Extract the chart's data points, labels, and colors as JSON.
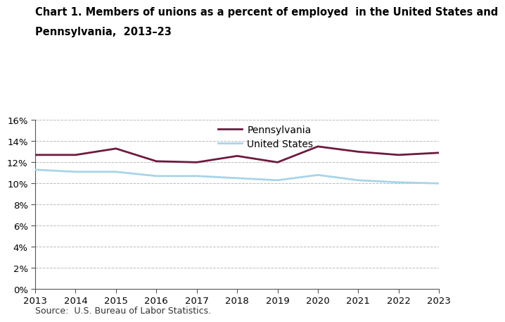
{
  "title_line1": "Chart 1. Members of unions as a percent of employed  in the United States and",
  "title_line2": "Pennsylvania,  2013–23",
  "years": [
    2013,
    2014,
    2015,
    2016,
    2017,
    2018,
    2019,
    2020,
    2021,
    2022,
    2023
  ],
  "pennsylvania": [
    12.7,
    12.7,
    13.3,
    12.1,
    12.0,
    12.6,
    12.0,
    13.5,
    13.0,
    12.7,
    12.9
  ],
  "united_states": [
    11.3,
    11.1,
    11.1,
    10.7,
    10.7,
    10.5,
    10.3,
    10.8,
    10.3,
    10.1,
    10.0
  ],
  "pa_color": "#6d1a3e",
  "us_color": "#a8d4e8",
  "pa_label": "Pennsylvania",
  "us_label": "United States",
  "ylim": [
    0,
    16
  ],
  "yticks": [
    0,
    2,
    4,
    6,
    8,
    10,
    12,
    14,
    16
  ],
  "grid_color": "#bbbbbb",
  "line_width": 2.0,
  "source_text": "Source:  U.S. Bureau of Labor Statistics.",
  "background_color": "#ffffff",
  "title_fontsize": 10.5,
  "legend_fontsize": 10,
  "tick_fontsize": 9.5,
  "source_fontsize": 9
}
